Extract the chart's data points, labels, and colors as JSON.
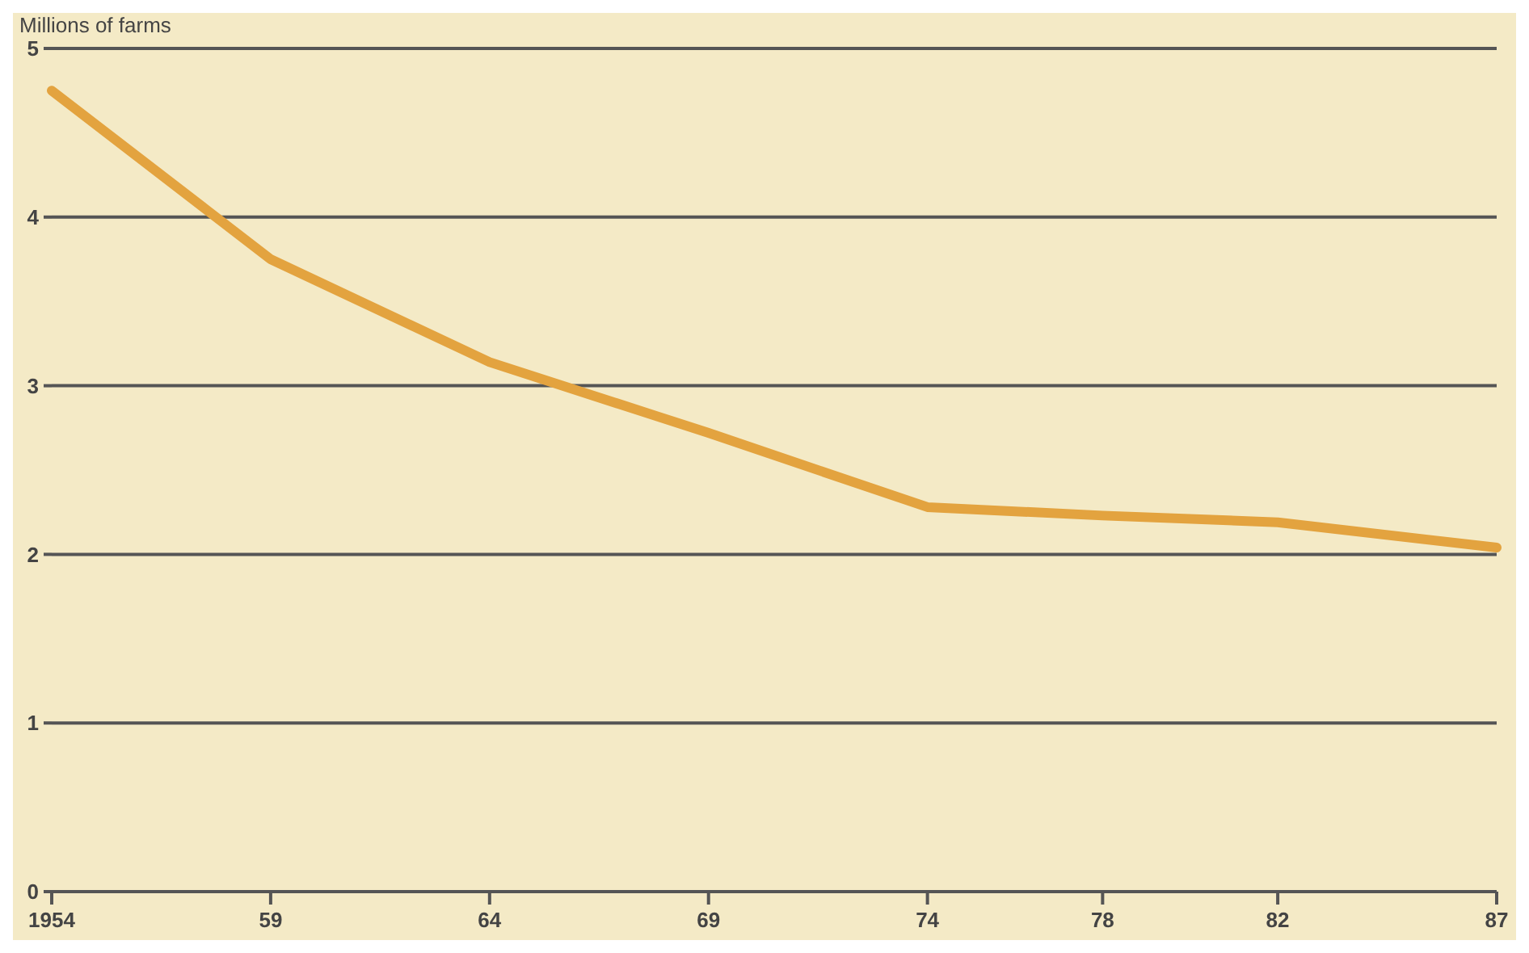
{
  "chart_data": {
    "type": "line",
    "ylabel": "Millions of farms",
    "x": [
      1954,
      1959,
      1964,
      1969,
      1974,
      1978,
      1982,
      1987
    ],
    "series": [
      {
        "color": "#e3a33f",
        "values": [
          4.75,
          3.75,
          3.14,
          2.72,
          2.28,
          2.23,
          2.19,
          2.04
        ]
      }
    ],
    "xlim": [
      1954,
      1987
    ],
    "xticks": [
      {
        "value": 1954,
        "label": "1954"
      },
      {
        "value": 1959,
        "label": "59"
      },
      {
        "value": 1964,
        "label": "64"
      },
      {
        "value": 1969,
        "label": "69"
      },
      {
        "value": 1974,
        "label": "74"
      },
      {
        "value": 1978,
        "label": "78"
      },
      {
        "value": 1982,
        "label": "82"
      },
      {
        "value": 1987,
        "label": "87"
      }
    ],
    "ylim": [
      0,
      5
    ],
    "yticks": [
      0,
      1,
      2,
      3,
      4,
      5
    ],
    "grid": "y",
    "marker": "none",
    "line_style": "solid"
  }
}
